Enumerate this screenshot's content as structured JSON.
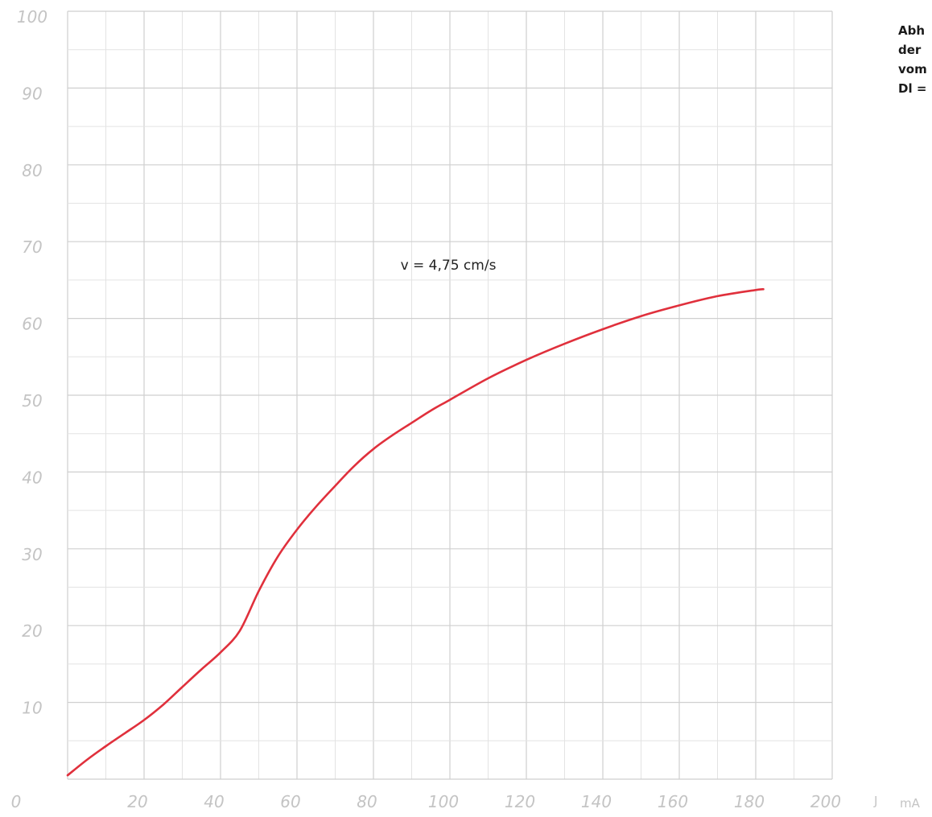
{
  "chart_data": {
    "type": "line",
    "title": "",
    "xlabel": "J",
    "xunit": "mA",
    "ylabel": "",
    "xlim": [
      0,
      200
    ],
    "ylim": [
      0,
      100
    ],
    "grid": true,
    "xticks": [
      "0",
      "20",
      "40",
      "60",
      "80",
      "100",
      "120",
      "140",
      "160",
      "180",
      "200"
    ],
    "yticks": [
      "0",
      "10",
      "20",
      "30",
      "40",
      "50",
      "60",
      "70",
      "80",
      "90",
      "100"
    ],
    "annotation": "v = 4,75 cm/s",
    "annotation_at": [
      100,
      67
    ],
    "series": [
      {
        "color": "#e0303c",
        "x": [
          0,
          5,
          10,
          15,
          20,
          25,
          30,
          35,
          40,
          45,
          50,
          55,
          60,
          65,
          70,
          75,
          80,
          85,
          90,
          95,
          100,
          110,
          120,
          130,
          140,
          150,
          160,
          170,
          180,
          182
        ],
        "y": [
          0.5,
          2.5,
          4.3,
          6.0,
          7.7,
          9.7,
          12.0,
          14.3,
          16.5,
          19.3,
          24.5,
          29.0,
          32.5,
          35.5,
          38.2,
          40.8,
          43.0,
          44.8,
          46.4,
          48.0,
          49.4,
          52.2,
          54.6,
          56.7,
          58.6,
          60.3,
          61.7,
          62.9,
          63.7,
          63.8
        ]
      }
    ]
  },
  "caption": {
    "lines": [
      "Abh",
      "der",
      "vom",
      "Dl ="
    ]
  }
}
